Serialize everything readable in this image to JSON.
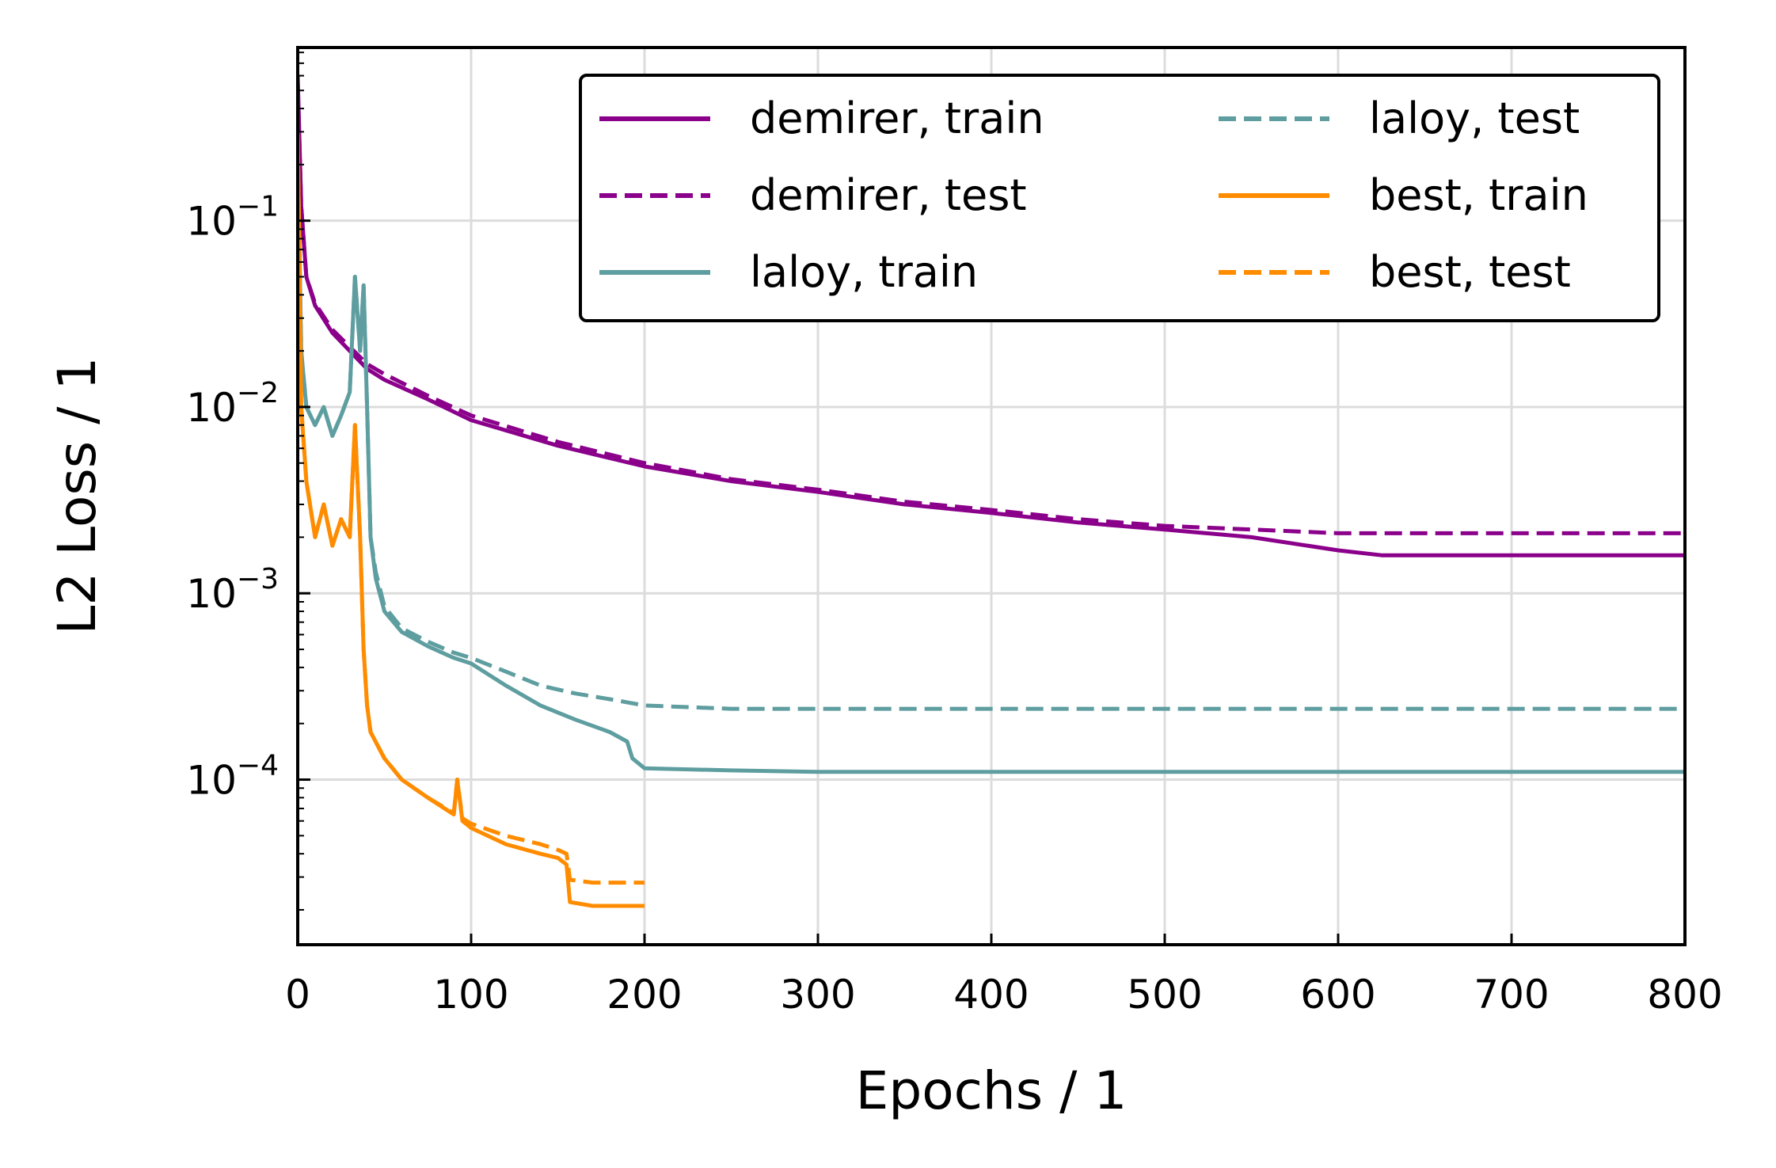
{
  "chart_data": {
    "type": "line",
    "title": "",
    "xlabel": "Epochs / 1",
    "ylabel": "L2 Loss / 1",
    "xlim": [
      0,
      800
    ],
    "ylim": [
      1.3e-05,
      0.85
    ],
    "yscale": "log",
    "grid": true,
    "legend_position": "top-right",
    "legend_columns": 2,
    "x_ticks": [
      0,
      100,
      200,
      300,
      400,
      500,
      600,
      700,
      800
    ],
    "y_ticks": [
      {
        "value": 0.0001,
        "base": "10",
        "exp": "−4"
      },
      {
        "value": 0.001,
        "base": "10",
        "exp": "−3"
      },
      {
        "value": 0.01,
        "base": "10",
        "exp": "−2"
      },
      {
        "value": 0.1,
        "base": "10",
        "exp": "−1"
      }
    ],
    "series": [
      {
        "name": "demirer, train",
        "color": "#8B008B",
        "style": "solid",
        "points": [
          [
            0,
            0.6
          ],
          [
            2,
            0.12
          ],
          [
            5,
            0.05
          ],
          [
            10,
            0.035
          ],
          [
            20,
            0.025
          ],
          [
            30,
            0.02
          ],
          [
            40,
            0.016
          ],
          [
            50,
            0.014
          ],
          [
            75,
            0.011
          ],
          [
            100,
            0.0085
          ],
          [
            150,
            0.0062
          ],
          [
            200,
            0.0048
          ],
          [
            250,
            0.004
          ],
          [
            300,
            0.0035
          ],
          [
            350,
            0.003
          ],
          [
            400,
            0.0027
          ],
          [
            450,
            0.0024
          ],
          [
            500,
            0.0022
          ],
          [
            550,
            0.002
          ],
          [
            600,
            0.0017
          ],
          [
            625,
            0.0016
          ],
          [
            650,
            0.0016
          ],
          [
            700,
            0.0016
          ],
          [
            750,
            0.0016
          ],
          [
            800,
            0.0016
          ]
        ]
      },
      {
        "name": "demirer, test",
        "color": "#8B008B",
        "style": "dashed",
        "points": [
          [
            0,
            0.55
          ],
          [
            2,
            0.12
          ],
          [
            5,
            0.05
          ],
          [
            10,
            0.036
          ],
          [
            20,
            0.026
          ],
          [
            30,
            0.021
          ],
          [
            40,
            0.017
          ],
          [
            50,
            0.015
          ],
          [
            75,
            0.0115
          ],
          [
            100,
            0.009
          ],
          [
            150,
            0.0065
          ],
          [
            200,
            0.005
          ],
          [
            250,
            0.0041
          ],
          [
            300,
            0.0036
          ],
          [
            350,
            0.0031
          ],
          [
            400,
            0.0028
          ],
          [
            450,
            0.0025
          ],
          [
            500,
            0.0023
          ],
          [
            550,
            0.0022
          ],
          [
            600,
            0.0021
          ],
          [
            625,
            0.0021
          ],
          [
            650,
            0.0021
          ],
          [
            700,
            0.0021
          ],
          [
            750,
            0.0021
          ],
          [
            800,
            0.0021
          ]
        ]
      },
      {
        "name": "laloy, train",
        "color": "#5F9EA0",
        "style": "solid",
        "points": [
          [
            0,
            0.25
          ],
          [
            2,
            0.02
          ],
          [
            5,
            0.01
          ],
          [
            10,
            0.008
          ],
          [
            15,
            0.01
          ],
          [
            20,
            0.007
          ],
          [
            25,
            0.009
          ],
          [
            30,
            0.012
          ],
          [
            33,
            0.05
          ],
          [
            36,
            0.02
          ],
          [
            38,
            0.045
          ],
          [
            40,
            0.01
          ],
          [
            42,
            0.002
          ],
          [
            45,
            0.0012
          ],
          [
            50,
            0.0008
          ],
          [
            60,
            0.00062
          ],
          [
            75,
            0.00052
          ],
          [
            90,
            0.00045
          ],
          [
            100,
            0.00042
          ],
          [
            120,
            0.00032
          ],
          [
            140,
            0.00025
          ],
          [
            160,
            0.00021
          ],
          [
            180,
            0.00018
          ],
          [
            190,
            0.00016
          ],
          [
            193,
            0.00013
          ],
          [
            200,
            0.000115
          ],
          [
            250,
            0.000112
          ],
          [
            300,
            0.00011
          ],
          [
            400,
            0.00011
          ],
          [
            500,
            0.00011
          ],
          [
            600,
            0.00011
          ],
          [
            700,
            0.00011
          ],
          [
            800,
            0.00011
          ]
        ]
      },
      {
        "name": "laloy, test",
        "color": "#5F9EA0",
        "style": "dashed",
        "points": [
          [
            0,
            0.25
          ],
          [
            2,
            0.02
          ],
          [
            5,
            0.01
          ],
          [
            10,
            0.008
          ],
          [
            15,
            0.01
          ],
          [
            20,
            0.007
          ],
          [
            25,
            0.009
          ],
          [
            30,
            0.012
          ],
          [
            33,
            0.05
          ],
          [
            36,
            0.02
          ],
          [
            38,
            0.045
          ],
          [
            40,
            0.01
          ],
          [
            42,
            0.002
          ],
          [
            45,
            0.0013
          ],
          [
            50,
            0.00085
          ],
          [
            60,
            0.00065
          ],
          [
            75,
            0.00055
          ],
          [
            90,
            0.00048
          ],
          [
            100,
            0.00045
          ],
          [
            120,
            0.00038
          ],
          [
            140,
            0.00032
          ],
          [
            160,
            0.00029
          ],
          [
            180,
            0.00027
          ],
          [
            190,
            0.00026
          ],
          [
            200,
            0.00025
          ],
          [
            250,
            0.00024
          ],
          [
            300,
            0.00024
          ],
          [
            400,
            0.00024
          ],
          [
            500,
            0.00024
          ],
          [
            600,
            0.00024
          ],
          [
            700,
            0.00024
          ],
          [
            800,
            0.00024
          ]
        ]
      },
      {
        "name": "best, train",
        "color": "#FF8C00",
        "style": "solid",
        "points": [
          [
            0,
            0.3
          ],
          [
            2,
            0.01
          ],
          [
            5,
            0.004
          ],
          [
            10,
            0.002
          ],
          [
            15,
            0.003
          ],
          [
            20,
            0.0018
          ],
          [
            25,
            0.0025
          ],
          [
            30,
            0.002
          ],
          [
            33,
            0.008
          ],
          [
            36,
            0.002
          ],
          [
            38,
            0.0005
          ],
          [
            40,
            0.00025
          ],
          [
            42,
            0.00018
          ],
          [
            50,
            0.00013
          ],
          [
            60,
            0.0001
          ],
          [
            75,
            8e-05
          ],
          [
            90,
            6.5e-05
          ],
          [
            92,
            0.0001
          ],
          [
            95,
            6e-05
          ],
          [
            100,
            5.5e-05
          ],
          [
            120,
            4.5e-05
          ],
          [
            140,
            4e-05
          ],
          [
            150,
            3.8e-05
          ],
          [
            155,
            3.5e-05
          ],
          [
            157,
            2.2e-05
          ],
          [
            170,
            2.1e-05
          ],
          [
            200,
            2.1e-05
          ]
        ]
      },
      {
        "name": "best, test",
        "color": "#FF8C00",
        "style": "dashed",
        "points": [
          [
            0,
            0.3
          ],
          [
            2,
            0.01
          ],
          [
            5,
            0.004
          ],
          [
            10,
            0.002
          ],
          [
            15,
            0.003
          ],
          [
            20,
            0.0018
          ],
          [
            25,
            0.0025
          ],
          [
            30,
            0.002
          ],
          [
            33,
            0.008
          ],
          [
            36,
            0.002
          ],
          [
            38,
            0.0005
          ],
          [
            40,
            0.00025
          ],
          [
            42,
            0.00018
          ],
          [
            50,
            0.00013
          ],
          [
            60,
            0.0001
          ],
          [
            75,
            8e-05
          ],
          [
            90,
            6.6e-05
          ],
          [
            92,
            0.0001
          ],
          [
            95,
            6.2e-05
          ],
          [
            100,
            5.8e-05
          ],
          [
            120,
            5e-05
          ],
          [
            140,
            4.5e-05
          ],
          [
            150,
            4.2e-05
          ],
          [
            155,
            4e-05
          ],
          [
            157,
            2.9e-05
          ],
          [
            170,
            2.8e-05
          ],
          [
            200,
            2.8e-05
          ]
        ]
      }
    ]
  }
}
